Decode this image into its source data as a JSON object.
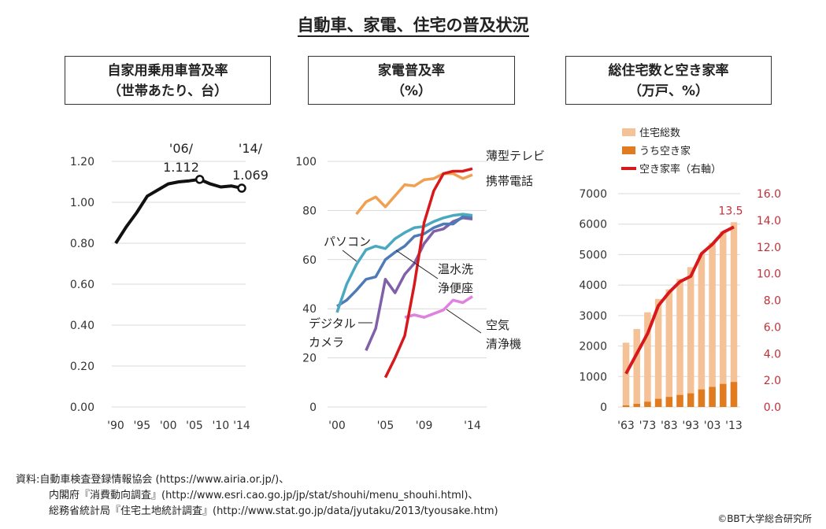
{
  "title": "自動車、家電、住宅の普及状況",
  "panels": [
    {
      "title_line1": "自家用乗用車普及率",
      "title_line2": "（世帯あたり、台）"
    },
    {
      "title_line1": "家電普及率",
      "title_line2": "（%）"
    },
    {
      "title_line1": "総住宅数と空き家率",
      "title_line2": "（万戸、%）"
    }
  ],
  "chart_data": [
    {
      "type": "line",
      "title": "自家用乗用車普及率（世帯あたり、台）",
      "xlabel": "",
      "ylabel": "",
      "x": [
        1990,
        1992,
        1994,
        1996,
        1998,
        2000,
        2002,
        2004,
        2006,
        2008,
        2010,
        2012,
        2014
      ],
      "x_tick_labels": [
        "'90",
        "'95",
        "'00",
        "'05",
        "'10",
        "'14"
      ],
      "x_ticks": [
        1990,
        1995,
        2000,
        2005,
        2010,
        2014
      ],
      "y_tick_labels": [
        "0.00",
        "0.20",
        "0.40",
        "0.60",
        "0.80",
        "1.00",
        "1.20"
      ],
      "ylim": [
        0,
        1.2
      ],
      "grid": true,
      "series": [
        {
          "name": "自家用乗用車普及率",
          "color": "#111111",
          "values": [
            0.8,
            0.88,
            0.95,
            1.03,
            1.06,
            1.09,
            1.1,
            1.105,
            1.112,
            1.09,
            1.075,
            1.08,
            1.069
          ]
        }
      ],
      "annotations": [
        {
          "x": 2006,
          "line1": "'06/",
          "line2": "1.112"
        },
        {
          "x": 2014,
          "line1": "'14/",
          "line2": "1.069"
        }
      ]
    },
    {
      "type": "line",
      "title": "家電普及率（%）",
      "xlabel": "",
      "ylabel": "",
      "x_tick_labels": [
        "'00",
        "'05",
        "'09",
        "'14"
      ],
      "x_ticks": [
        2000,
        2005,
        2009,
        2014
      ],
      "y_tick_labels": [
        "0",
        "20",
        "40",
        "60",
        "80",
        "100"
      ],
      "ylim": [
        0,
        100
      ],
      "grid": true,
      "series": [
        {
          "name": "薄型テレビ",
          "color": "#d7191c",
          "x": [
            2005,
            2006,
            2007,
            2008,
            2009,
            2010,
            2011,
            2012,
            2013,
            2014
          ],
          "values": [
            12,
            20,
            29,
            50,
            75,
            88,
            95,
            96,
            96,
            97
          ]
        },
        {
          "name": "携帯電話",
          "color": "#f0a050",
          "x": [
            2002,
            2003,
            2004,
            2005,
            2006,
            2007,
            2008,
            2009,
            2010,
            2011,
            2012,
            2013,
            2014
          ],
          "values": [
            78.5,
            83.5,
            85.5,
            81.5,
            86,
            90.5,
            90,
            92.5,
            93,
            95,
            95,
            93,
            94.5
          ]
        },
        {
          "name": "パソコン",
          "color": "#4aa8c0",
          "x": [
            2000,
            2001,
            2002,
            2003,
            2004,
            2005,
            2006,
            2007,
            2008,
            2009,
            2010,
            2011,
            2012,
            2013,
            2014
          ],
          "values": [
            38.5,
            50,
            58,
            64,
            65.5,
            64.5,
            68.5,
            71,
            73,
            73.5,
            75.5,
            77,
            78,
            78.5,
            78
          ]
        },
        {
          "name": "温水洗浄便座",
          "color": "#4f7ab8",
          "x": [
            2000,
            2001,
            2002,
            2003,
            2004,
            2005,
            2006,
            2007,
            2008,
            2009,
            2010,
            2011,
            2012,
            2013,
            2014
          ],
          "values": [
            41,
            43.5,
            47.5,
            52,
            53,
            60,
            63,
            65.5,
            69.5,
            70.5,
            73,
            74.5,
            74.5,
            77.5,
            77.5
          ]
        },
        {
          "name": "デジタルカメラ",
          "color": "#8060a8",
          "x": [
            2003,
            2004,
            2005,
            2006,
            2007,
            2008,
            2009,
            2010,
            2011,
            2012,
            2013,
            2014
          ],
          "values": [
            23,
            32,
            52,
            46.5,
            54,
            58.5,
            66.5,
            71.5,
            72.5,
            75.5,
            77,
            76.5
          ]
        },
        {
          "name": "空気清浄機",
          "color": "#e080e0",
          "x": [
            2007,
            2008,
            2009,
            2010,
            2011,
            2012,
            2013,
            2014
          ],
          "values": [
            36.5,
            37.5,
            36.5,
            38,
            39.5,
            43.5,
            42.5,
            45
          ]
        }
      ],
      "labels": [
        "薄型テレビ",
        "携帯電話",
        "パソコン",
        "温水洗",
        "浄便座",
        "デジタル",
        "カメラ",
        "空気",
        "清浄機"
      ]
    },
    {
      "type": "bar",
      "title": "総住宅数と空き家率（万戸、%）",
      "xlabel": "",
      "ylabel": "",
      "categories": [
        "1963",
        "1968",
        "1973",
        "1978",
        "1983",
        "1988",
        "1993",
        "1998",
        "2003",
        "2008",
        "2013"
      ],
      "x_tick_labels": [
        "'63",
        "'73",
        "'83",
        "'93",
        "'03",
        "'13"
      ],
      "y_tick_labels_left": [
        "0",
        "1000",
        "2000",
        "3000",
        "4000",
        "5000",
        "6000",
        "7000"
      ],
      "y_tick_labels_right": [
        "0.0",
        "2.0",
        "4.0",
        "6.0",
        "8.0",
        "10.0",
        "12.0",
        "14.0",
        "16.0"
      ],
      "ylim": [
        0,
        7000
      ],
      "ylim_right": [
        0,
        16
      ],
      "grid": true,
      "legend_position": "top-left",
      "series": [
        {
          "name": "住宅総数",
          "color": "#f5c196",
          "axis": "left",
          "values": [
            2109,
            2559,
            3106,
            3545,
            3861,
            4201,
            4588,
            5025,
            5389,
            5759,
            6063
          ]
        },
        {
          "name": "うち空き家",
          "color": "#e07b20",
          "axis": "left",
          "values": [
            52,
            103,
            172,
            268,
            330,
            394,
            448,
            576,
            659,
            757,
            820
          ]
        },
        {
          "name": "空き家率（右軸）",
          "color": "#d7191c",
          "axis": "right",
          "type": "line",
          "values": [
            2.5,
            4.0,
            5.5,
            7.6,
            8.6,
            9.4,
            9.8,
            11.5,
            12.2,
            13.1,
            13.5
          ]
        }
      ],
      "annotations": [
        {
          "series": "空き家率（右軸）",
          "x": "2013",
          "label": "13.5"
        }
      ]
    }
  ],
  "source": {
    "line1": "資料:自動車検査登録情報協会 (https://www.airia.or.jp/)、",
    "line2": "内閣府『消費動向調査』(http://www.esri.cao.go.jp/jp/stat/shouhi/menu_shouhi.html)、",
    "line3": "総務省統計局『住宅土地統計調査』(http://www.stat.go.jp/data/jyutaku/2013/tyousake.htm)"
  },
  "copyright": "©BBT大学総合研究所"
}
